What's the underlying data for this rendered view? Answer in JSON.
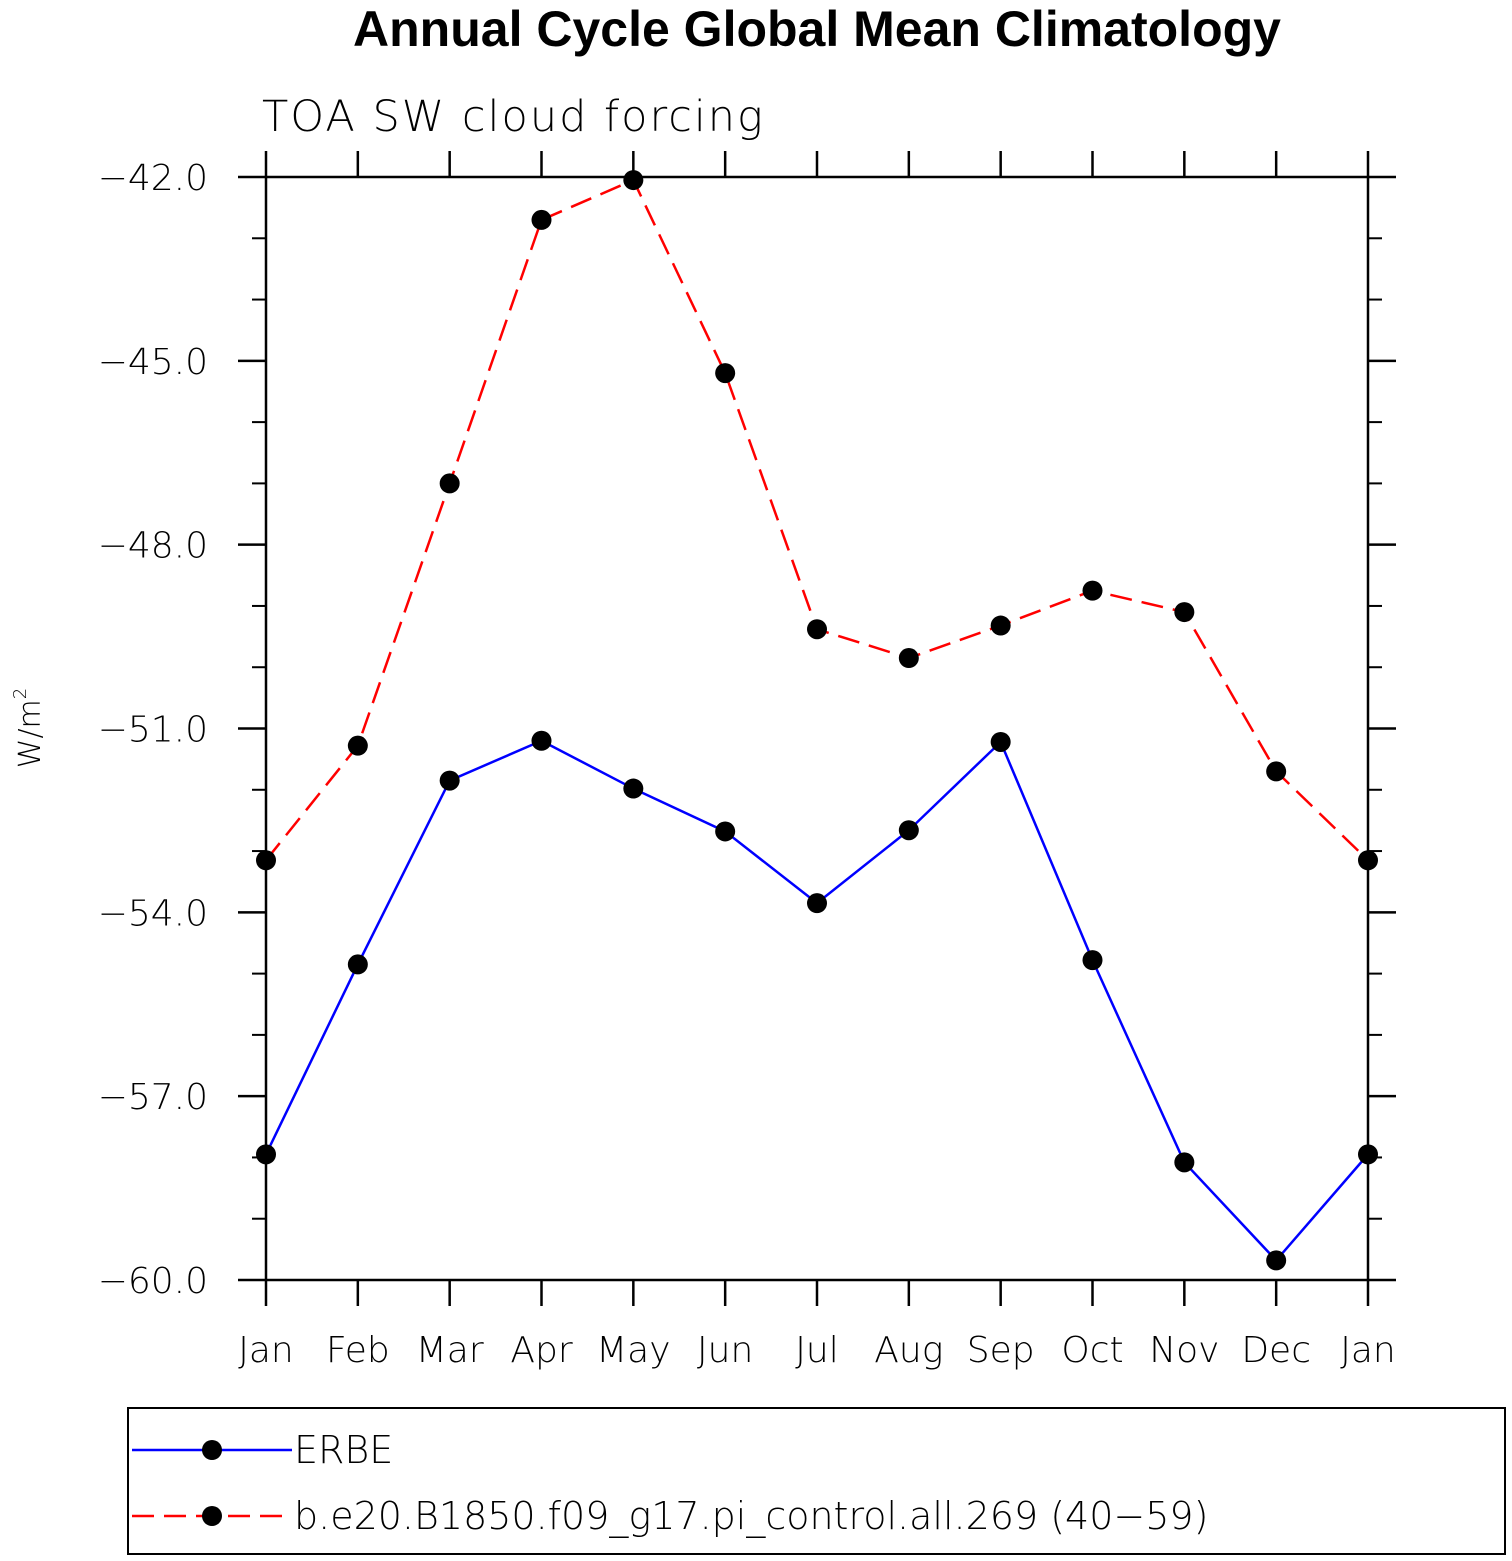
{
  "chart_data": {
    "type": "line",
    "title": "Annual Cycle Global Mean Climatology",
    "subtitle": "TOA SW cloud forcing",
    "xlabel": "",
    "ylabel": "W/m",
    "ylabel_superscript": "2",
    "categories": [
      "Jan",
      "Feb",
      "Mar",
      "Apr",
      "May",
      "Jun",
      "Jul",
      "Aug",
      "Sep",
      "Oct",
      "Nov",
      "Dec",
      "Jan"
    ],
    "ylim": [
      -60.0,
      -42.0
    ],
    "yticks": [
      -42.0,
      -45.0,
      -48.0,
      -51.0,
      -54.0,
      -57.0,
      -60.0
    ],
    "ytick_labels": [
      "−42.0",
      "−45.0",
      "−48.0",
      "−51.0",
      "−54.0",
      "−57.0",
      "−60.0"
    ],
    "series": [
      {
        "name": "ERBE",
        "color": "#0000ff",
        "dash": "solid",
        "marker": "filled-circle",
        "values": [
          -57.95,
          -54.85,
          -51.85,
          -51.2,
          -51.98,
          -52.68,
          -53.85,
          -52.66,
          -51.22,
          -54.78,
          -58.08,
          -59.68,
          -57.95
        ]
      },
      {
        "name": "b.e20.B1850.f09_g17.pi_control.all.269 (40−59)",
        "color": "#ff0000",
        "dash": "dashed",
        "marker": "filled-circle",
        "values": [
          -53.15,
          -51.28,
          -47.0,
          -42.7,
          -42.05,
          -45.2,
          -49.38,
          -49.85,
          -49.32,
          -48.75,
          -49.1,
          -51.7,
          -53.15
        ]
      }
    ],
    "legend_position": "bottom",
    "grid": false
  }
}
